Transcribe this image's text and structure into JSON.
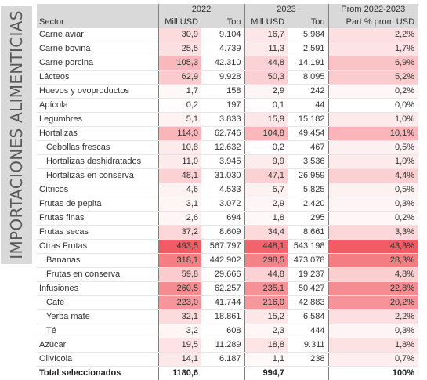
{
  "side_title": "IMPORTACIONES ALIMENTICIAS",
  "header": {
    "year_2022": "2022",
    "year_2023": "2023",
    "avg_label": "Prom 2022-2023",
    "sector": "Sector",
    "mill_usd_2022": "Mill USD",
    "ton_2022": "Ton",
    "mill_usd_2023": "Mill USD",
    "ton_2023": "Ton",
    "share": "Part % prom USD"
  },
  "colors": {
    "header_bg": "#d9d9d9",
    "heat_max": "#f15b63"
  },
  "rows": [
    {
      "sector": "Carne aviar",
      "sub": false,
      "m22": "30,9",
      "t22": "9.104",
      "m23": "16,7",
      "t23": "5.984",
      "pct": "2,2%"
    },
    {
      "sector": "Carne bovina",
      "sub": false,
      "m22": "25,5",
      "t22": "4.739",
      "m23": "11,3",
      "t23": "2.591",
      "pct": "1,7%"
    },
    {
      "sector": "Carne porcina",
      "sub": false,
      "m22": "105,3",
      "t22": "42.310",
      "m23": "44,8",
      "t23": "14.191",
      "pct": "6,9%"
    },
    {
      "sector": "Lácteos",
      "sub": false,
      "m22": "62,9",
      "t22": "9.928",
      "m23": "50,3",
      "t23": "8.095",
      "pct": "5,2%"
    },
    {
      "sector": "Huevos y ovoproductos",
      "sub": false,
      "m22": "1,7",
      "t22": "158",
      "m23": "2,9",
      "t23": "242",
      "pct": "0,2%"
    },
    {
      "sector": "Apícola",
      "sub": false,
      "m22": "0,2",
      "t22": "197",
      "m23": "0,1",
      "t23": "44",
      "pct": "0,0%"
    },
    {
      "sector": "Legumbres",
      "sub": false,
      "m22": "5,1",
      "t22": "3.833",
      "m23": "15,9",
      "t23": "15.182",
      "pct": "1,0%"
    },
    {
      "sector": "Hortalizas",
      "sub": false,
      "m22": "114,0",
      "t22": "62.746",
      "m23": "104,8",
      "t23": "49.454",
      "pct": "10,1%"
    },
    {
      "sector": "Cebollas frescas",
      "sub": true,
      "m22": "10,8",
      "t22": "12.632",
      "m23": "0,2",
      "t23": "467",
      "pct": "0,5%"
    },
    {
      "sector": "Hortalizas deshidratados",
      "sub": true,
      "m22": "11,0",
      "t22": "3.945",
      "m23": "9,9",
      "t23": "3.536",
      "pct": "1,0%"
    },
    {
      "sector": "Hortalizas en conserva",
      "sub": true,
      "m22": "48,1",
      "t22": "31.030",
      "m23": "47,1",
      "t23": "26.959",
      "pct": "4,4%"
    },
    {
      "sector": "Cítricos",
      "sub": false,
      "m22": "4,6",
      "t22": "4.533",
      "m23": "5,7",
      "t23": "5.825",
      "pct": "0,5%"
    },
    {
      "sector": "Frutas de pepita",
      "sub": false,
      "m22": "3,1",
      "t22": "3.072",
      "m23": "2,9",
      "t23": "2.420",
      "pct": "0,3%"
    },
    {
      "sector": "Frutas finas",
      "sub": false,
      "m22": "2,6",
      "t22": "694",
      "m23": "1,8",
      "t23": "295",
      "pct": "0,2%"
    },
    {
      "sector": "Frutas secas",
      "sub": false,
      "m22": "37,2",
      "t22": "8.609",
      "m23": "34,4",
      "t23": "8.661",
      "pct": "3,3%"
    },
    {
      "sector": "Otras Frutas",
      "sub": false,
      "m22": "493,5",
      "t22": "567.797",
      "m23": "448,1",
      "t23": "543.198",
      "pct": "43,3%"
    },
    {
      "sector": "Bananas",
      "sub": true,
      "m22": "318,1",
      "t22": "442.902",
      "m23": "298,5",
      "t23": "473.078",
      "pct": "28,3%"
    },
    {
      "sector": "Frutas en conserva",
      "sub": true,
      "m22": "59,8",
      "t22": "29.666",
      "m23": "44,8",
      "t23": "19.237",
      "pct": "4,8%"
    },
    {
      "sector": "Infusiones",
      "sub": false,
      "m22": "260,5",
      "t22": "62.257",
      "m23": "235,1",
      "t23": "50.427",
      "pct": "22,8%"
    },
    {
      "sector": "Café",
      "sub": true,
      "m22": "223,0",
      "t22": "41.744",
      "m23": "216,0",
      "t23": "42.883",
      "pct": "20,2%"
    },
    {
      "sector": "Yerba mate",
      "sub": true,
      "m22": "32,1",
      "t22": "18.861",
      "m23": "15,2",
      "t23": "6.584",
      "pct": "2,2%"
    },
    {
      "sector": "Té",
      "sub": true,
      "m22": "3,2",
      "t22": "608",
      "m23": "2,3",
      "t23": "444",
      "pct": "0,3%"
    },
    {
      "sector": "Azúcar",
      "sub": false,
      "m22": "19,5",
      "t22": "11.289",
      "m23": "18,8",
      "t23": "9.311",
      "pct": "1,8%"
    },
    {
      "sector": "Olivícola",
      "sub": false,
      "m22": "14,1",
      "t22": "6.187",
      "m23": "1,1",
      "t23": "238",
      "pct": "0,7%"
    }
  ],
  "total": {
    "sector": "Total seleccionados",
    "m22": "1180,6",
    "m23": "994,7",
    "pct": "100%"
  }
}
